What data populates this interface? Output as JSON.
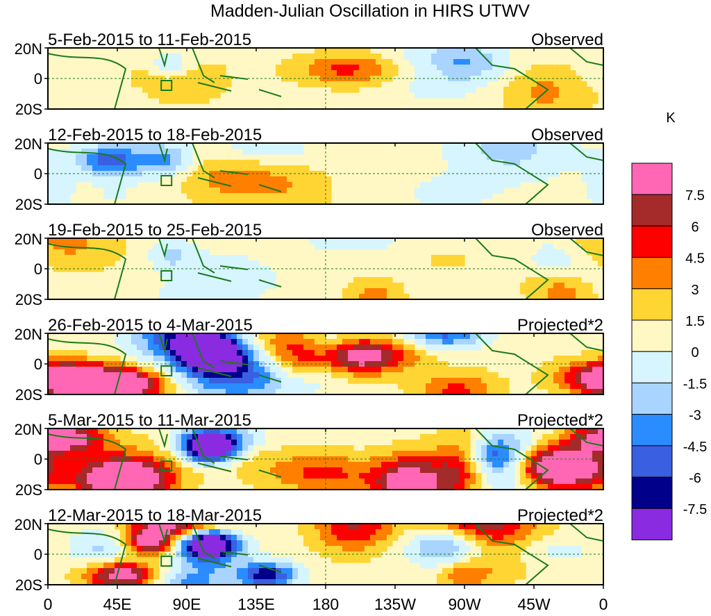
{
  "title": "Madden-Julian Oscillation in HIRS UTWV",
  "unit": "K",
  "lat_labels": [
    "20N",
    "0",
    "20S"
  ],
  "lon_labels": [
    "0",
    "45E",
    "90E",
    "135E",
    "180",
    "135W",
    "90W",
    "45W",
    "0"
  ],
  "panels": [
    {
      "period": "5-Feb-2015 to 11-Feb-2015",
      "type": "Observed",
      "amp": 0.6,
      "seed": 1
    },
    {
      "period": "12-Feb-2015 to 18-Feb-2015",
      "type": "Observed",
      "amp": 0.5,
      "seed": 2
    },
    {
      "period": "19-Feb-2015 to 25-Feb-2015",
      "type": "Observed",
      "amp": 0.5,
      "seed": 3
    },
    {
      "period": "26-Feb-2015 to 4-Mar-2015",
      "type": "Projected*2",
      "amp": 1.3,
      "seed": 4
    },
    {
      "period": "5-Mar-2015 to 11-Mar-2015",
      "type": "Projected*2",
      "amp": 1.4,
      "seed": 5
    },
    {
      "period": "12-Mar-2015 to 18-Mar-2015",
      "type": "Projected*2",
      "amp": 1.4,
      "seed": 6
    }
  ],
  "colorbar": {
    "colors": [
      "#ff66b3",
      "#a52a2a",
      "#ff0000",
      "#ff7f00",
      "#ffd533",
      "#fff8c4",
      "#d6f5ff",
      "#a8d4ff",
      "#2a8cff",
      "#3a5fe0",
      "#00008b",
      "#8a2be2"
    ],
    "labels": [
      "7.5",
      "6",
      "4.5",
      "3",
      "1.5",
      "0",
      "-1.5",
      "-3",
      "-4.5",
      "-6",
      "-7.5"
    ]
  }
}
